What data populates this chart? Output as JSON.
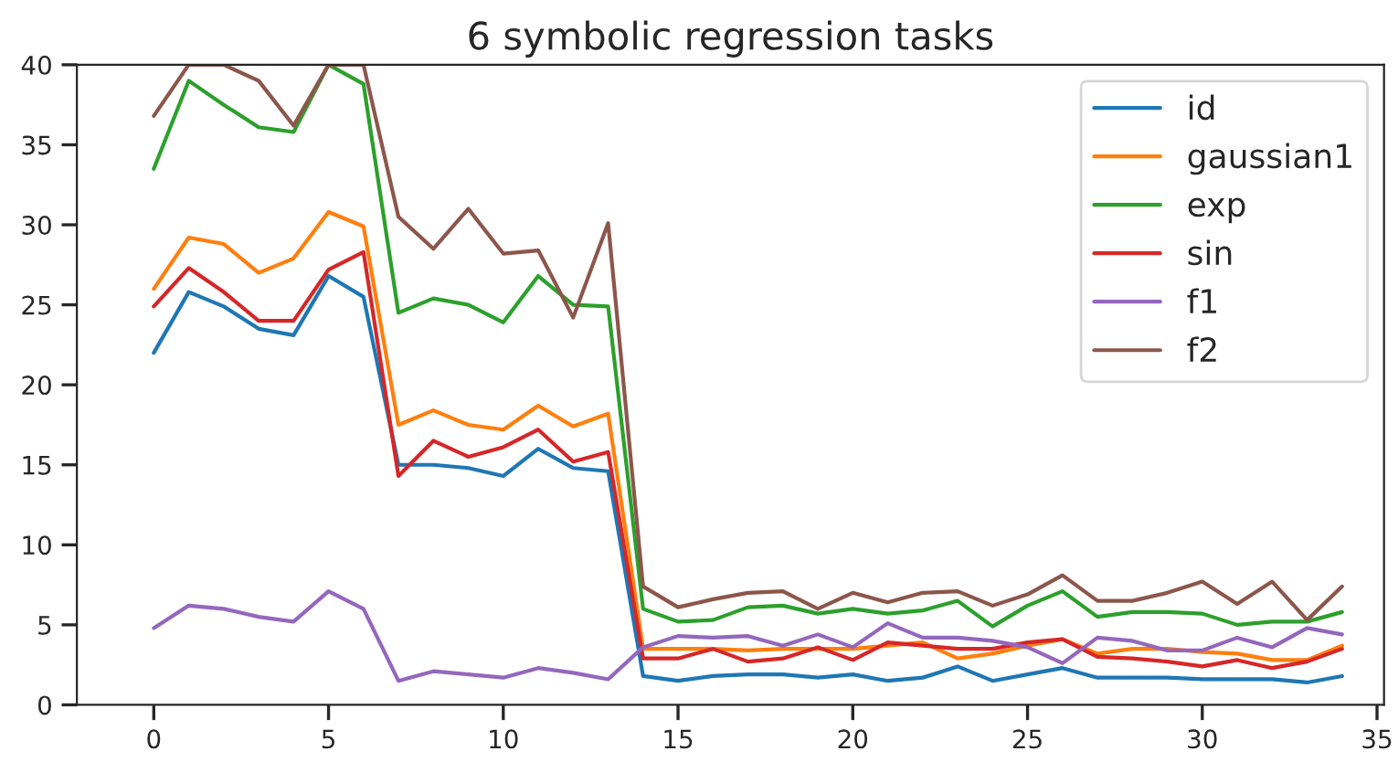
{
  "chart_data": {
    "type": "line",
    "title": "6 symbolic regression tasks",
    "x": [
      0,
      1,
      2,
      3,
      4,
      5,
      6,
      7,
      8,
      9,
      10,
      11,
      12,
      13,
      14,
      15,
      16,
      17,
      18,
      19,
      20,
      21,
      22,
      23,
      24,
      25,
      26,
      27,
      28,
      29,
      30,
      31,
      32,
      33,
      34
    ],
    "xlim": [
      -2.2,
      35.2
    ],
    "xticks": [
      0,
      5,
      10,
      15,
      20,
      25,
      30,
      35
    ],
    "ylim": [
      0,
      40
    ],
    "yticks": [
      0,
      5,
      10,
      15,
      20,
      25,
      30,
      35,
      40
    ],
    "grid": false,
    "legend": "top right",
    "series": [
      {
        "name": "id",
        "color": "#1f77b4",
        "values": [
          22,
          25.8,
          24.9,
          23.5,
          23.1,
          26.8,
          25.5,
          15,
          15,
          14.8,
          14.3,
          16,
          14.8,
          14.6,
          1.8,
          1.5,
          1.8,
          1.9,
          1.9,
          1.7,
          1.9,
          1.5,
          1.7,
          2.4,
          1.5,
          1.9,
          2.3,
          1.7,
          1.7,
          1.7,
          1.6,
          1.6,
          1.6,
          1.4,
          1.8
        ]
      },
      {
        "name": "gaussian1",
        "color": "#ff7f0e",
        "values": [
          26,
          29.2,
          28.8,
          27,
          27.9,
          30.8,
          29.9,
          17.5,
          18.4,
          17.5,
          17.2,
          18.7,
          17.4,
          18.2,
          3.5,
          3.5,
          3.5,
          3.4,
          3.5,
          3.5,
          3.5,
          3.7,
          3.9,
          2.9,
          3.2,
          3.7,
          4.1,
          3.2,
          3.5,
          3.5,
          3.3,
          3.2,
          2.8,
          2.8,
          3.7
        ]
      },
      {
        "name": "exp",
        "color": "#2ca02c",
        "values": [
          33.5,
          39,
          37.5,
          36.1,
          35.8,
          40,
          38.8,
          24.5,
          25.4,
          25,
          23.9,
          26.8,
          25,
          24.9,
          6,
          5.2,
          5.3,
          6.1,
          6.2,
          5.7,
          6,
          5.7,
          5.9,
          6.5,
          4.9,
          6.2,
          7.1,
          5.5,
          5.8,
          5.8,
          5.7,
          5,
          5.2,
          5.2,
          5.8
        ]
      },
      {
        "name": "sin",
        "color": "#d62728",
        "values": [
          24.9,
          27.3,
          25.8,
          24,
          24,
          27.2,
          28.3,
          14.3,
          16.5,
          15.5,
          16.1,
          17.2,
          15.2,
          15.8,
          2.9,
          2.9,
          3.5,
          2.7,
          2.9,
          3.6,
          2.8,
          3.9,
          3.7,
          3.5,
          3.5,
          3.9,
          4.1,
          3,
          2.9,
          2.7,
          2.4,
          2.8,
          2.3,
          2.7,
          3.5
        ]
      },
      {
        "name": "f1",
        "color": "#9467bd",
        "values": [
          4.8,
          6.2,
          6,
          5.5,
          5.2,
          7.1,
          6,
          1.5,
          2.1,
          1.9,
          1.7,
          2.3,
          2,
          1.6,
          3.6,
          4.3,
          4.2,
          4.3,
          3.7,
          4.4,
          3.6,
          5.1,
          4.2,
          4.2,
          4,
          3.6,
          2.6,
          4.2,
          4,
          3.4,
          3.4,
          4.2,
          3.6,
          4.8,
          4.4
        ]
      },
      {
        "name": "f2",
        "color": "#8c564b",
        "values": [
          36.8,
          40,
          40,
          39,
          36.2,
          40,
          40,
          30.5,
          28.5,
          31,
          28.2,
          28.4,
          24.2,
          30.1,
          7.4,
          6.1,
          6.6,
          7,
          7.1,
          6,
          7,
          6.4,
          7,
          7.1,
          6.2,
          6.9,
          8.1,
          6.5,
          6.5,
          7,
          7.7,
          6.3,
          7.7,
          5.3,
          7.4
        ]
      }
    ]
  }
}
